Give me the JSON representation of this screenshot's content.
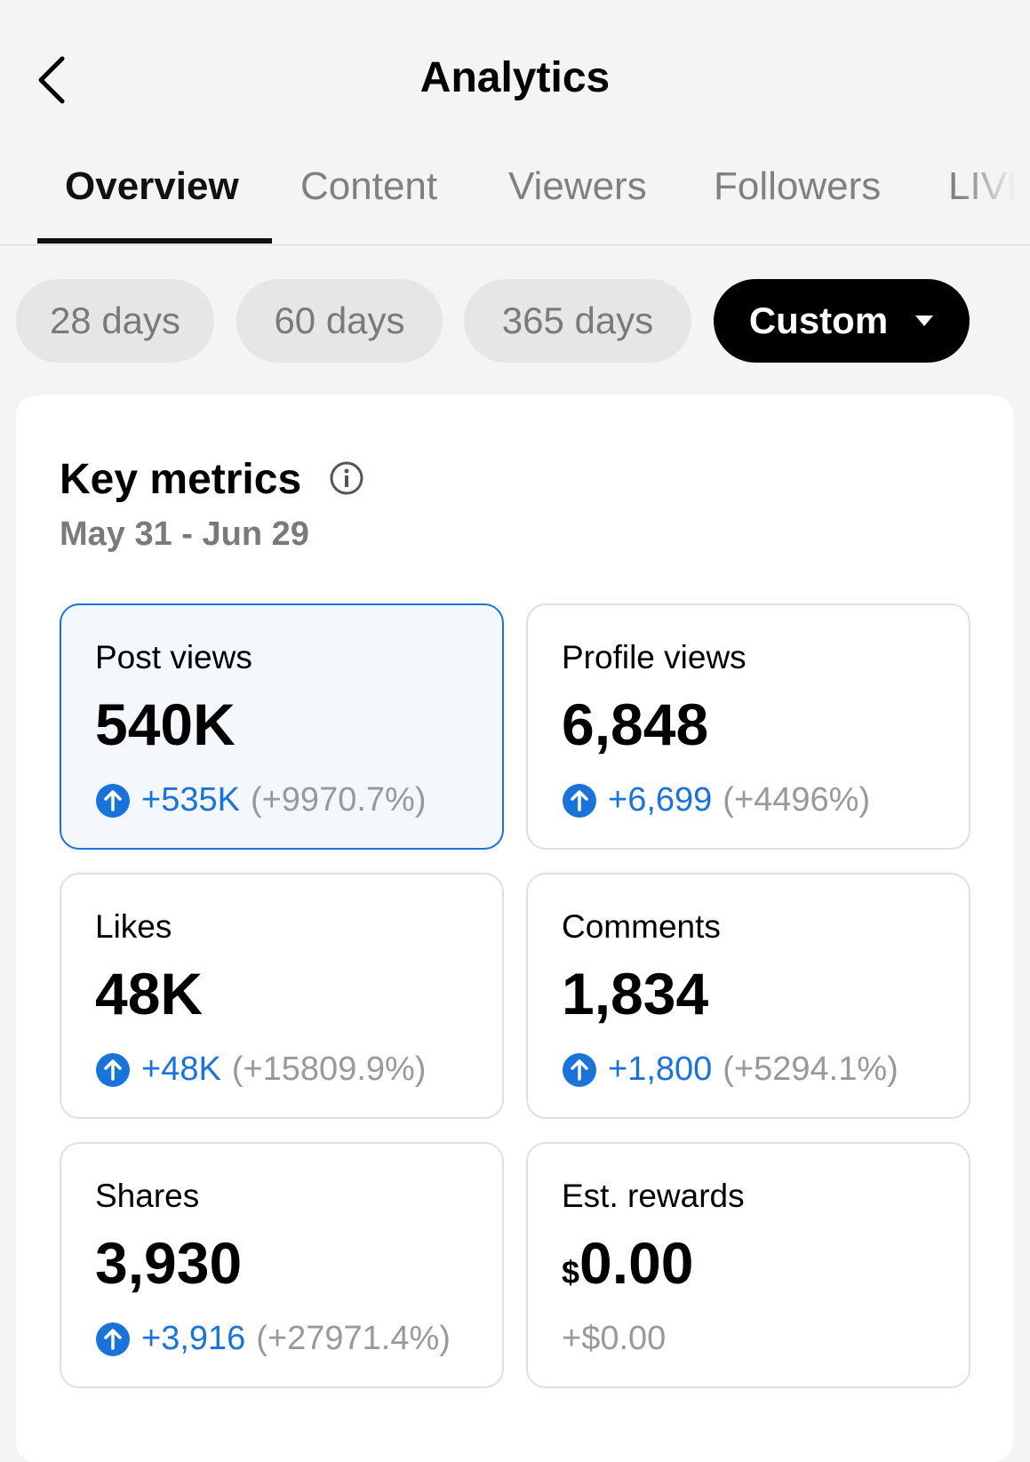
{
  "header": {
    "title": "Analytics"
  },
  "tabs": [
    "Overview",
    "Content",
    "Viewers",
    "Followers",
    "LIVE"
  ],
  "ranges": [
    "28 days",
    "60 days",
    "365 days",
    "Custom"
  ],
  "metrics": {
    "title": "Key metrics",
    "date_range": "May 31 - Jun 29",
    "cards": [
      {
        "label": "Post views",
        "value": "540K",
        "change": "+535K",
        "percent": "(+9970.7%)"
      },
      {
        "label": "Profile views",
        "value": "6,848",
        "change": "+6,699",
        "percent": "(+4496%)"
      },
      {
        "label": "Likes",
        "value": "48K",
        "change": "+48K",
        "percent": "(+15809.9%)"
      },
      {
        "label": "Comments",
        "value": "1,834",
        "change": "+1,800",
        "percent": "(+5294.1%)"
      },
      {
        "label": "Shares",
        "value": "3,930",
        "change": "+3,916",
        "percent": "(+27971.4%)"
      },
      {
        "label": "Est. rewards",
        "currency": "$",
        "value": "0.00",
        "change": "+$0.00"
      }
    ]
  }
}
